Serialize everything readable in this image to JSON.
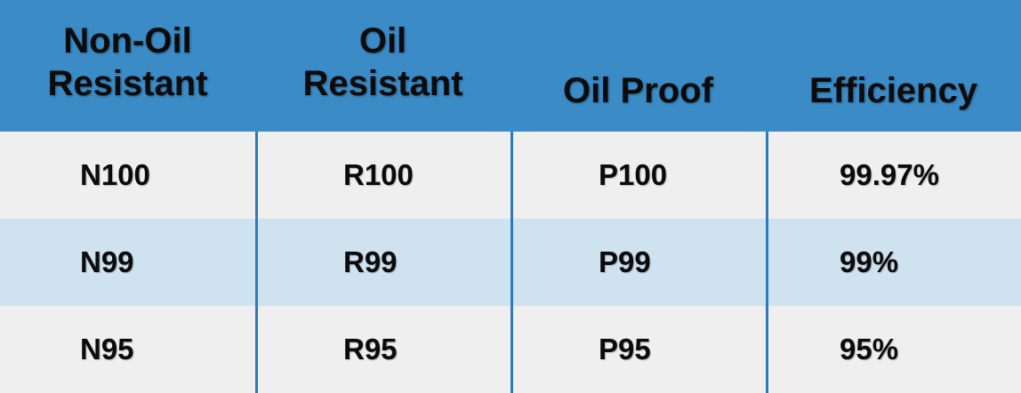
{
  "headers": [
    "Non-Oil\nResistant",
    "Oil\nResistant",
    "Oil Proof",
    "Efficiency"
  ],
  "rows": [
    [
      "N100",
      "R100",
      "P100",
      "99.97%"
    ],
    [
      "N99",
      "R99",
      "P99",
      "99%"
    ],
    [
      "N95",
      "R95",
      "P95",
      "95%"
    ]
  ],
  "colors": {
    "header_bg": "#3a8bc6",
    "row_light": "#efefef",
    "row_blue": "#cfe2f0",
    "divider": "#2d7bbf"
  }
}
